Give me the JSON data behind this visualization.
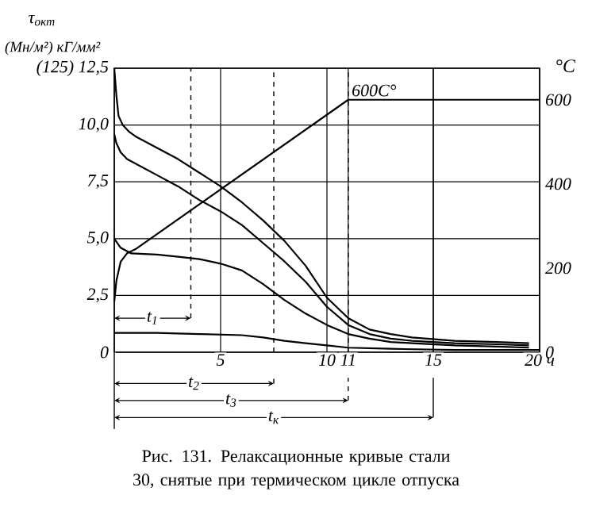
{
  "chart_data": {
    "type": "line",
    "ylabel": "τ$_{окт}$",
    "y2label": "°C",
    "annotations": [
      "(Мн/м²) кГ/мм²",
      "Рис. 131. Релаксационные кривые стали 30, снятые при термическом цикле отпуска",
      "t$_{1}$",
      "t$_{2}$",
      "t$_{3}$",
      "t$_{к}$"
    ],
    "xlim": [
      0,
      20
    ],
    "xticks": [
      {
        "value": 0,
        "label": null
      },
      5,
      10,
      11,
      15,
      {
        "value": 20,
        "label": "20 ч"
      }
    ],
    "ylim": [
      0,
      12.5
    ],
    "yticks": [
      {
        "value": 0,
        "label": "0"
      },
      {
        "value": 2.5,
        "label": "2,5"
      },
      {
        "value": 5,
        "label": "5,0"
      },
      {
        "value": 7.5,
        "label": "7,5"
      },
      {
        "value": 10,
        "label": "10,0"
      },
      {
        "value": 12.5,
        "label": "(125)  12,5"
      }
    ],
    "y2lim": [
      0,
      675
    ],
    "y2ticks": [
      0,
      200,
      400,
      600
    ],
    "grid": true,
    "series": [
      {
        "color": "#000000",
        "x": [
          0,
          0.1,
          0.2,
          0.4,
          0.7,
          1,
          2,
          3,
          4,
          5,
          6,
          7,
          8,
          9,
          10,
          11,
          12,
          13,
          14,
          16,
          18,
          19.5
        ],
        "values": [
          12.5,
          11.3,
          10.4,
          10.0,
          9.7,
          9.5,
          9.0,
          8.5,
          7.9,
          7.3,
          6.6,
          5.8,
          4.9,
          3.8,
          2.4,
          1.5,
          1.0,
          0.8,
          0.65,
          0.5,
          0.45,
          0.4
        ]
      },
      {
        "color": "#000000",
        "x": [
          0,
          0.1,
          0.3,
          0.6,
          1,
          2,
          3,
          4,
          5,
          6,
          7,
          8,
          9,
          10,
          11,
          12,
          13,
          14,
          16,
          18,
          19.5
        ],
        "values": [
          9.6,
          9.2,
          8.8,
          8.5,
          8.3,
          7.8,
          7.3,
          6.7,
          6.2,
          5.6,
          4.8,
          4.0,
          3.1,
          2.0,
          1.2,
          0.8,
          0.6,
          0.5,
          0.4,
          0.35,
          0.3
        ]
      },
      {
        "color": "#000000",
        "x": [
          0,
          0.3,
          0.8,
          2,
          3,
          4,
          5,
          6,
          7,
          8,
          9,
          10,
          11,
          12,
          13,
          14,
          16,
          18,
          19.5
        ],
        "values": [
          5.0,
          4.6,
          4.35,
          4.3,
          4.2,
          4.1,
          3.9,
          3.6,
          3.0,
          2.3,
          1.7,
          1.2,
          0.8,
          0.6,
          0.45,
          0.4,
          0.3,
          0.25,
          0.2
        ]
      },
      {
        "color": "#000000",
        "x": [
          0,
          2,
          4,
          6,
          7,
          8,
          9,
          10,
          11,
          13,
          16,
          20
        ],
        "values": [
          0.85,
          0.85,
          0.8,
          0.75,
          0.65,
          0.5,
          0.4,
          0.3,
          0.2,
          0.15,
          0.1,
          0.1
        ]
      },
      {
        "name": "600C°",
        "color": "#000000",
        "axis": "y2",
        "x": [
          0,
          0.1,
          0.3,
          0.6,
          1,
          11,
          20
        ],
        "values": [
          120,
          170,
          215,
          235,
          245,
          600,
          600
        ]
      }
    ],
    "ref_lines": [
      {
        "axis": "x",
        "value": 3.6,
        "line_style": "dashed"
      },
      {
        "axis": "x",
        "value": 7.5,
        "line_style": "dashed"
      },
      {
        "axis": "x",
        "value": 11,
        "line_style": "dashed"
      },
      {
        "axis": "x",
        "value": 15,
        "line_style": "solid"
      }
    ]
  }
}
